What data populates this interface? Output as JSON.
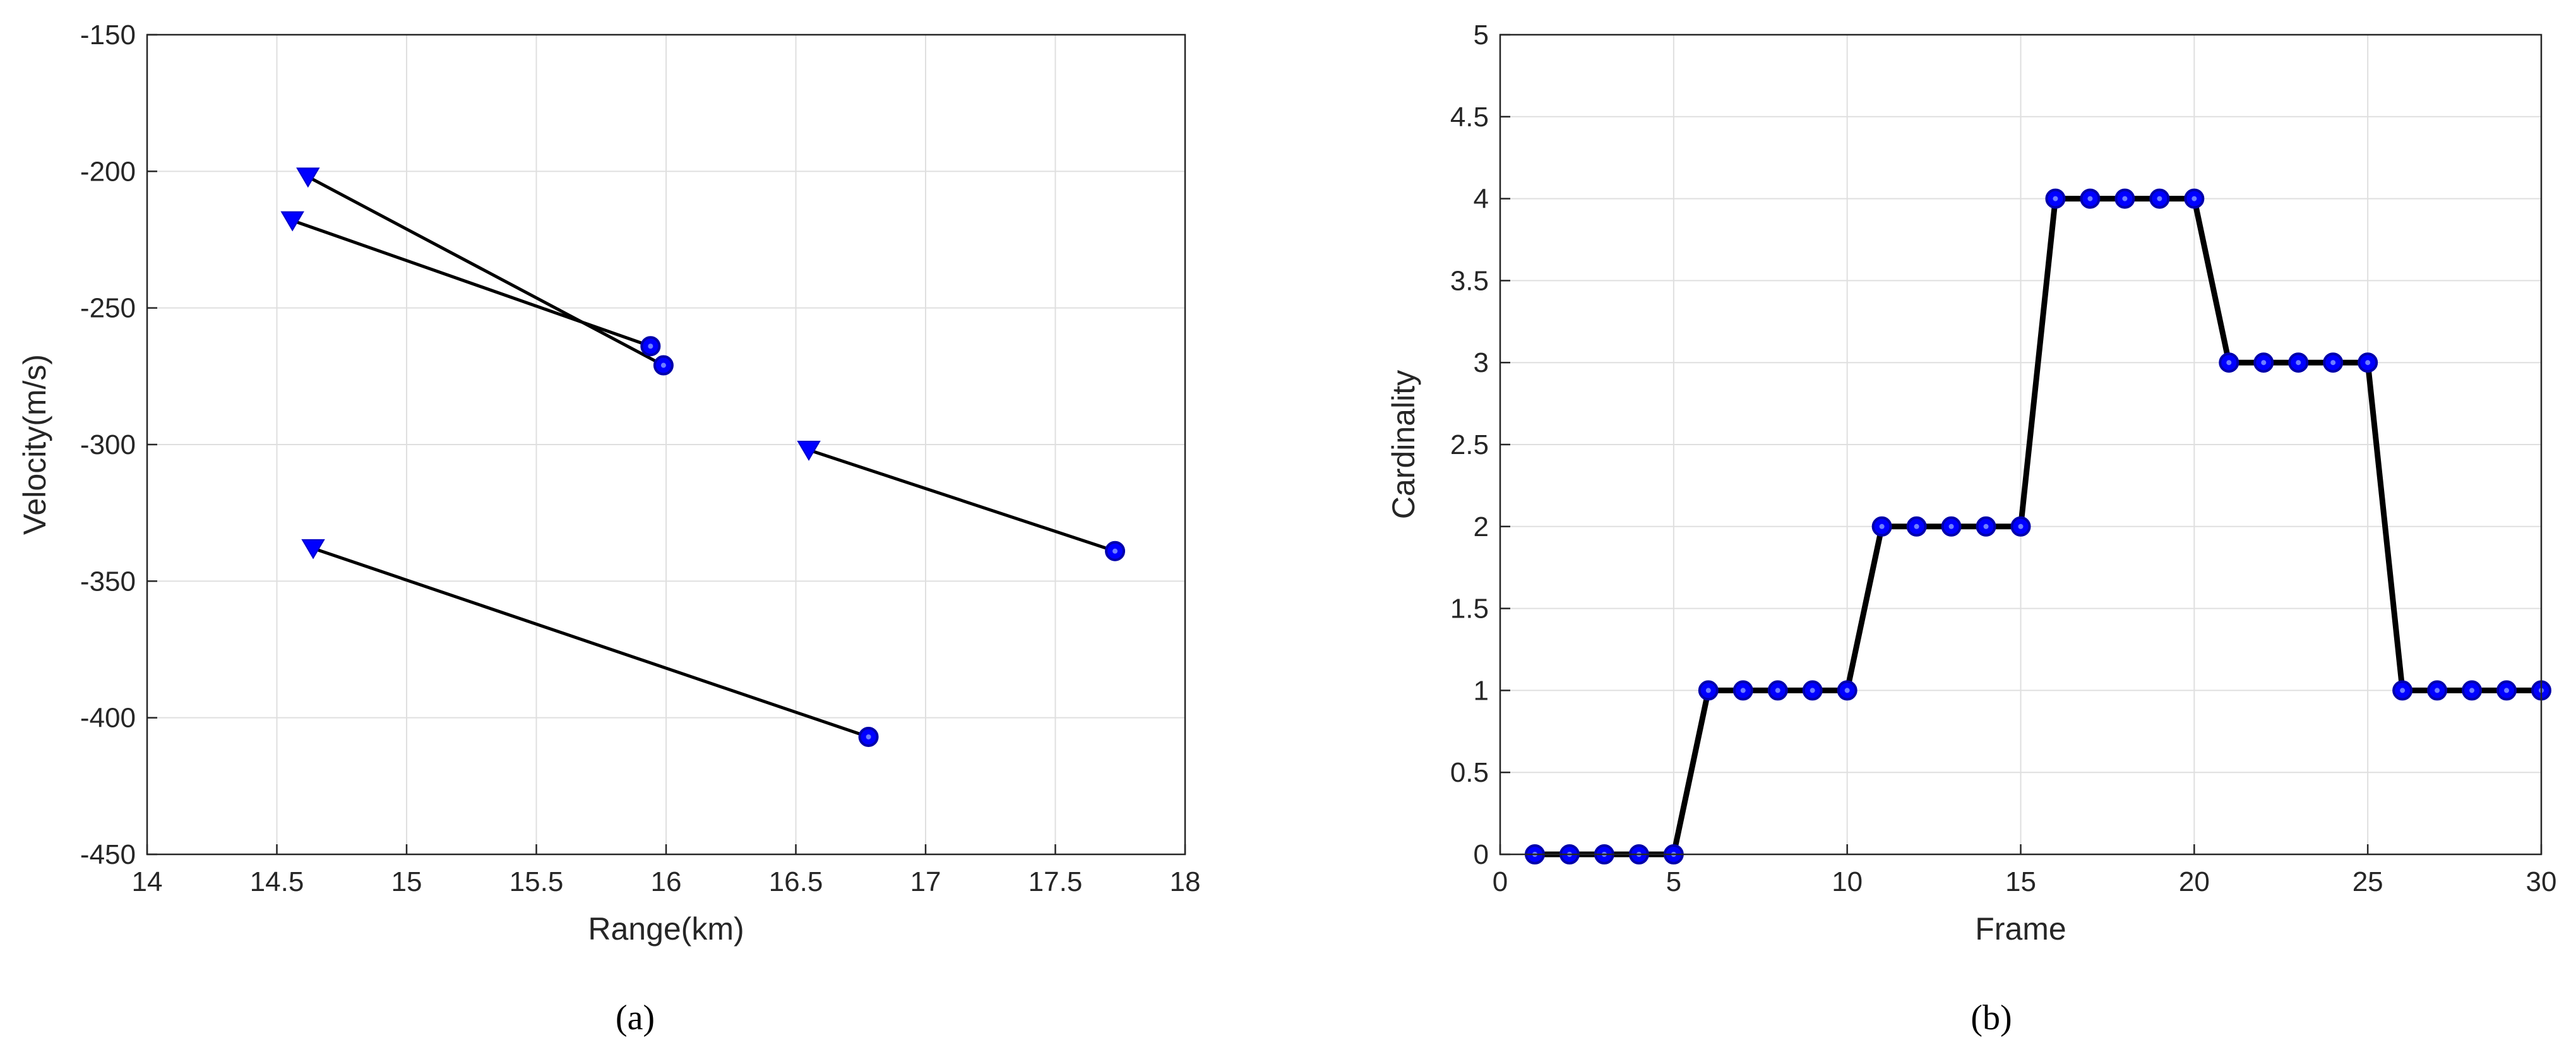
{
  "chart_data": [
    {
      "type": "scatter",
      "panel": "(a)",
      "xlabel": "Range(km)",
      "ylabel": "Velocity(m/s)",
      "xlim": [
        14,
        18
      ],
      "ylim": [
        -450,
        -150
      ],
      "xticks": [
        14,
        14.5,
        15,
        15.5,
        16,
        16.5,
        17,
        17.5,
        18
      ],
      "yticks": [
        -450,
        -400,
        -350,
        -300,
        -250,
        -200,
        -150
      ],
      "xtick_labels": [
        "14",
        "14.5",
        "15",
        "15.5",
        "16",
        "16.5",
        "17",
        "17.5",
        "18"
      ],
      "ytick_labels": [
        "-450",
        "-400",
        "-350",
        "-300",
        "-250",
        "-200",
        "-150"
      ],
      "grid": true,
      "line_color": "#000000",
      "marker_color": "#0000ff",
      "tracks": [
        {
          "start": {
            "x": 14.62,
            "y": -202
          },
          "end": {
            "x": 15.99,
            "y": -271
          }
        },
        {
          "start": {
            "x": 14.56,
            "y": -218
          },
          "end": {
            "x": 15.94,
            "y": -264
          }
        },
        {
          "start": {
            "x": 16.55,
            "y": -302
          },
          "end": {
            "x": 17.73,
            "y": -339
          }
        },
        {
          "start": {
            "x": 14.64,
            "y": -338
          },
          "end": {
            "x": 16.78,
            "y": -407
          }
        }
      ],
      "start_marker": "triangle-down",
      "end_marker": "circle"
    },
    {
      "type": "line",
      "panel": "(b)",
      "xlabel": "Frame",
      "ylabel": "Cardinality",
      "xlim": [
        0,
        30
      ],
      "ylim": [
        0,
        5
      ],
      "xticks": [
        0,
        5,
        10,
        15,
        20,
        25,
        30
      ],
      "yticks": [
        0,
        0.5,
        1,
        1.5,
        2,
        2.5,
        3,
        3.5,
        4,
        4.5,
        5
      ],
      "xtick_labels": [
        "0",
        "5",
        "10",
        "15",
        "20",
        "25",
        "30"
      ],
      "ytick_labels": [
        "0",
        "0.5",
        "1",
        "1.5",
        "2",
        "2.5",
        "3",
        "3.5",
        "4",
        "4.5",
        "5"
      ],
      "grid": true,
      "line_color": "#000000",
      "marker_color": "#0000ff",
      "x": [
        1,
        2,
        3,
        4,
        5,
        6,
        7,
        8,
        9,
        10,
        11,
        12,
        13,
        14,
        15,
        16,
        17,
        18,
        19,
        20,
        21,
        22,
        23,
        24,
        25,
        26,
        27,
        28,
        29,
        30
      ],
      "series": [
        {
          "values": [
            0,
            0,
            0,
            0,
            0,
            1,
            1,
            1,
            1,
            1,
            2,
            2,
            2,
            2,
            2,
            4,
            4,
            4,
            4,
            4,
            3,
            3,
            3,
            3,
            3,
            1,
            1,
            1,
            1,
            1
          ]
        }
      ]
    }
  ],
  "captions": {
    "a": "(a)",
    "b": "(b)"
  }
}
